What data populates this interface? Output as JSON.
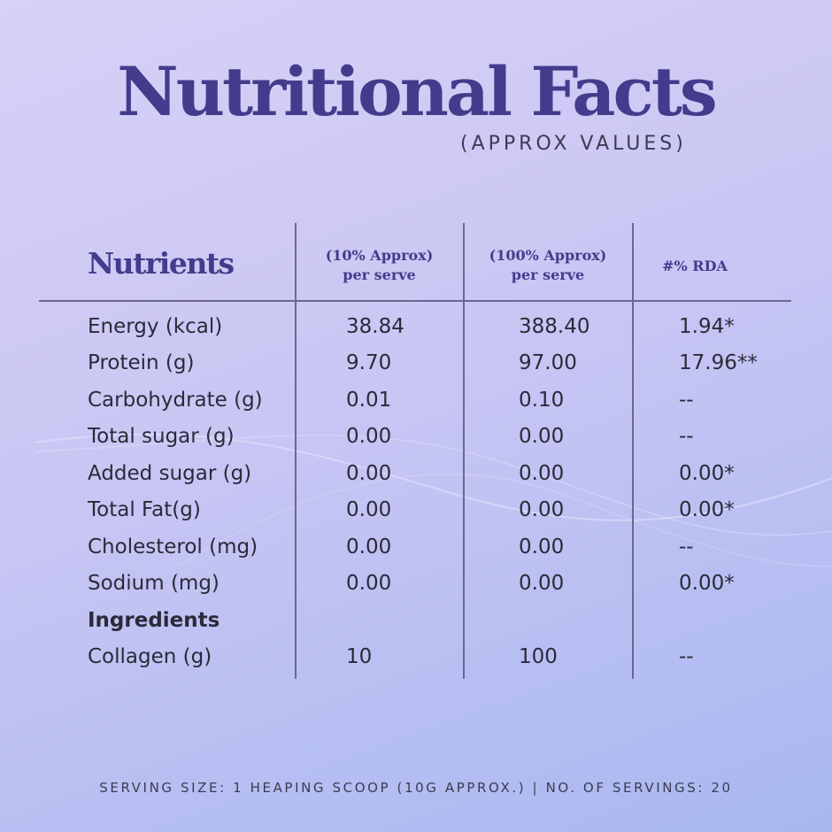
{
  "title": "Nutritional Facts",
  "subtitle": "(APPROX VALUES)",
  "table": {
    "headers": {
      "nutrients": "Nutrients",
      "col1_line1": "(10% Approx)",
      "col1_line2": "per serve",
      "col2_line1": "(100% Approx)",
      "col2_line2": "per serve",
      "col3": "#% RDA"
    },
    "rows": [
      {
        "name": "Energy (kcal)",
        "per_serve": "38.84",
        "per_100": "388.40",
        "rda": "1.94*"
      },
      {
        "name": "Protein (g)",
        "per_serve": "9.70",
        "per_100": "97.00",
        "rda": "17.96**"
      },
      {
        "name": "Carbohydrate (g)",
        "per_serve": "0.01",
        "per_100": "0.10",
        "rda": "--"
      },
      {
        "name": "Total sugar (g)",
        "per_serve": "0.00",
        "per_100": "0.00",
        "rda": "--"
      },
      {
        "name": "Added sugar (g)",
        "per_serve": "0.00",
        "per_100": "0.00",
        "rda": "0.00*"
      },
      {
        "name": "Total Fat(g)",
        "per_serve": "0.00",
        "per_100": "0.00",
        "rda": "0.00*"
      },
      {
        "name": "Cholesterol (mg)",
        "per_serve": "0.00",
        "per_100": "0.00",
        "rda": "--"
      },
      {
        "name": "Sodium (mg)",
        "per_serve": "0.00",
        "per_100": "0.00",
        "rda": "0.00*"
      }
    ],
    "ingredients_label": "Ingredients",
    "ingredients": [
      {
        "name": "Collagen (g)",
        "per_serve": "10",
        "per_100": "100",
        "rda": "--"
      }
    ]
  },
  "footer": "SERVING SIZE: 1 HEAPING SCOOP (10G APPROX.) | NO. OF SERVINGS: 20",
  "colors": {
    "title": "#433c8c",
    "text": "#2b2a3a",
    "background_start": "#d7d1f6",
    "background_end": "#a8b8f0"
  }
}
